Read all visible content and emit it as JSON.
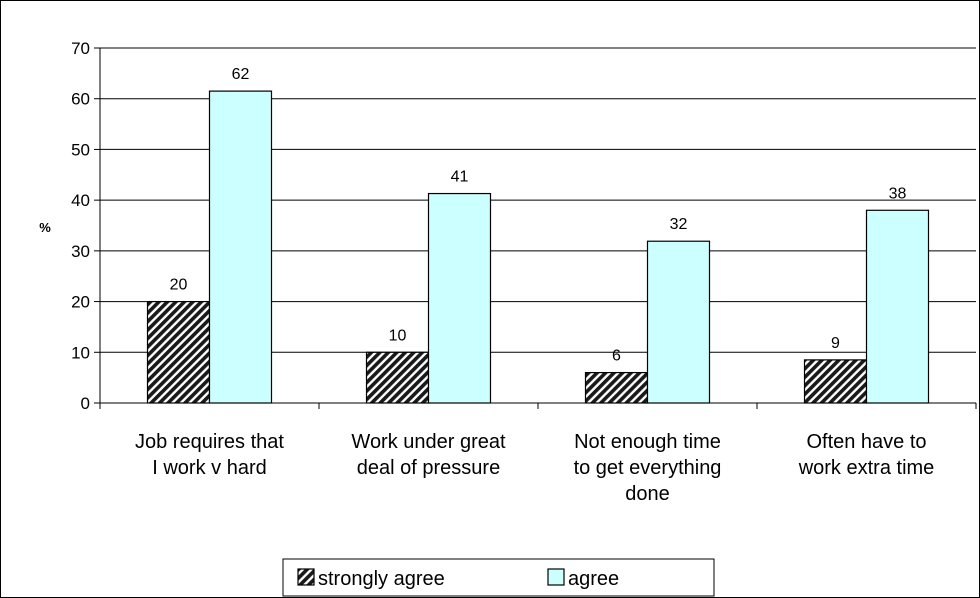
{
  "chart_data": {
    "type": "bar",
    "categories": [
      [
        "Job requires that",
        "I work v hard"
      ],
      [
        "Work under great",
        "deal of pressure"
      ],
      [
        "Not enough time",
        "to get everything",
        "done"
      ],
      [
        "Often have to",
        "work extra time"
      ]
    ],
    "series": [
      {
        "name": "strongly agree",
        "values": [
          20,
          10,
          6,
          8.5
        ],
        "labels": [
          "20",
          "10",
          "6",
          "9"
        ],
        "fill": "hatch",
        "color": "#000000"
      },
      {
        "name": "agree",
        "values": [
          61.5,
          41.3,
          31.9,
          38
        ],
        "labels": [
          "62",
          "41",
          "32",
          "38"
        ],
        "fill": "solid",
        "color": "#ccffff"
      }
    ],
    "ylabel": "%",
    "ylim": [
      0,
      70
    ],
    "yticks": [
      0,
      10,
      20,
      30,
      40,
      50,
      60,
      70
    ],
    "grid": true,
    "legend_position": "bottom"
  }
}
